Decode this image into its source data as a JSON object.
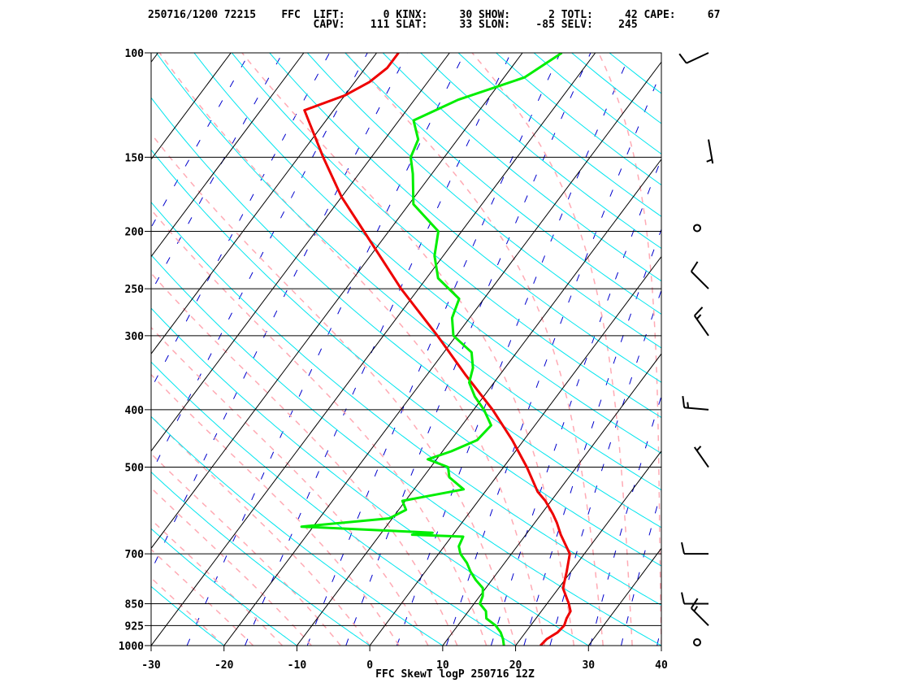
{
  "header": {
    "line1": "250716/1200 72215    FFC  LIFT:      0 KINX:     30 SHOW:      2 TOTL:     42 CAPE:     67",
    "line2": "                          CAPV:    111 SLAT:     33 SLON:    -85 SELV:    245"
  },
  "chart_data": {
    "type": "line",
    "title": "FFC SkewT logP 250716 12Z",
    "xlabel": "",
    "ylabel": "",
    "xlim": [
      -30,
      40
    ],
    "ylim": [
      1000,
      100
    ],
    "y_scale": "log",
    "skew": true,
    "x_ticks": [
      "-30",
      "-20",
      "-10",
      "0",
      "10",
      "20",
      "30",
      "40"
    ],
    "y_ticks": [
      "100",
      "150",
      "200",
      "250",
      "300",
      "400",
      "500",
      "700",
      "850",
      "925",
      "1000"
    ],
    "colors": {
      "temperature": "#ee0000",
      "dewpoint": "#00ee00",
      "isotherm": "#000000",
      "pressure_line": "#000000",
      "dry_adiabat": "#00e5ee",
      "moist_adiabat": "#ffaab4",
      "mixing_ratio": "#0000cc",
      "wind_barb": "#000000"
    },
    "series": [
      {
        "key": "temperature",
        "points": [
          [
            1000,
            23.4
          ],
          [
            975,
            23.6
          ],
          [
            950,
            24.4
          ],
          [
            925,
            24.6
          ],
          [
            900,
            24.2
          ],
          [
            875,
            24.0
          ],
          [
            850,
            23.0
          ],
          [
            800,
            20.6
          ],
          [
            750,
            19.4
          ],
          [
            700,
            18.0
          ],
          [
            650,
            14.8
          ],
          [
            620,
            13.0
          ],
          [
            600,
            11.6
          ],
          [
            570,
            9.2
          ],
          [
            550,
            7.2
          ],
          [
            500,
            3.2
          ],
          [
            450,
            -1.6
          ],
          [
            400,
            -7.4
          ],
          [
            350,
            -14.6
          ],
          [
            300,
            -22.6
          ],
          [
            250,
            -32.4
          ],
          [
            200,
            -43.4
          ],
          [
            175,
            -50.0
          ],
          [
            150,
            -56.6
          ],
          [
            125,
            -64.0
          ],
          [
            118,
            -60.0
          ],
          [
            112,
            -58.0
          ],
          [
            106,
            -57.0
          ],
          [
            100,
            -57.0
          ]
        ]
      },
      {
        "key": "dewpoint",
        "points": [
          [
            1000,
            18.4
          ],
          [
            975,
            17.6
          ],
          [
            950,
            16.6
          ],
          [
            925,
            15.2
          ],
          [
            900,
            13.2
          ],
          [
            875,
            12.4
          ],
          [
            850,
            10.8
          ],
          [
            825,
            10.4
          ],
          [
            800,
            9.6
          ],
          [
            775,
            7.8
          ],
          [
            750,
            6.2
          ],
          [
            725,
            4.8
          ],
          [
            700,
            3.0
          ],
          [
            680,
            2.0
          ],
          [
            655,
            1.6
          ],
          [
            650,
            -5.6
          ],
          [
            645,
            -3.0
          ],
          [
            640,
            -9.0
          ],
          [
            630,
            -21.6
          ],
          [
            610,
            -10.4
          ],
          [
            590,
            -9.0
          ],
          [
            570,
            -10.4
          ],
          [
            545,
            -3.2
          ],
          [
            520,
            -6.4
          ],
          [
            500,
            -7.6
          ],
          [
            485,
            -11.2
          ],
          [
            470,
            -8.8
          ],
          [
            450,
            -6.4
          ],
          [
            425,
            -6.0
          ],
          [
            400,
            -8.6
          ],
          [
            380,
            -11.2
          ],
          [
            360,
            -13.4
          ],
          [
            340,
            -14.4
          ],
          [
            320,
            -16.2
          ],
          [
            300,
            -20.4
          ],
          [
            280,
            -22.4
          ],
          [
            260,
            -23.4
          ],
          [
            240,
            -28.4
          ],
          [
            220,
            -31.2
          ],
          [
            200,
            -33.2
          ],
          [
            180,
            -39.4
          ],
          [
            160,
            -42.6
          ],
          [
            150,
            -44.6
          ],
          [
            140,
            -45.4
          ],
          [
            130,
            -48.0
          ],
          [
            120,
            -44.0
          ],
          [
            110,
            -37.2
          ],
          [
            100,
            -34.6
          ]
        ]
      }
    ],
    "wind_barbs": [
      {
        "p": 100,
        "dir": 245,
        "kt": 10
      },
      {
        "p": 140,
        "dir": 170,
        "kt": 5
      },
      {
        "p": 200,
        "dir": 295,
        "kt": 0
      },
      {
        "p": 250,
        "dir": 315,
        "kt": 10
      },
      {
        "p": 300,
        "dir": 325,
        "kt": 15
      },
      {
        "p": 400,
        "dir": 275,
        "kt": 15
      },
      {
        "p": 500,
        "dir": 325,
        "kt": 5
      },
      {
        "p": 700,
        "dir": 270,
        "kt": 10
      },
      {
        "p": 850,
        "dir": 270,
        "kt": 10
      },
      {
        "p": 925,
        "dir": 315,
        "kt": 15
      },
      {
        "p": 1000,
        "dir": 0,
        "kt": 0
      }
    ]
  }
}
